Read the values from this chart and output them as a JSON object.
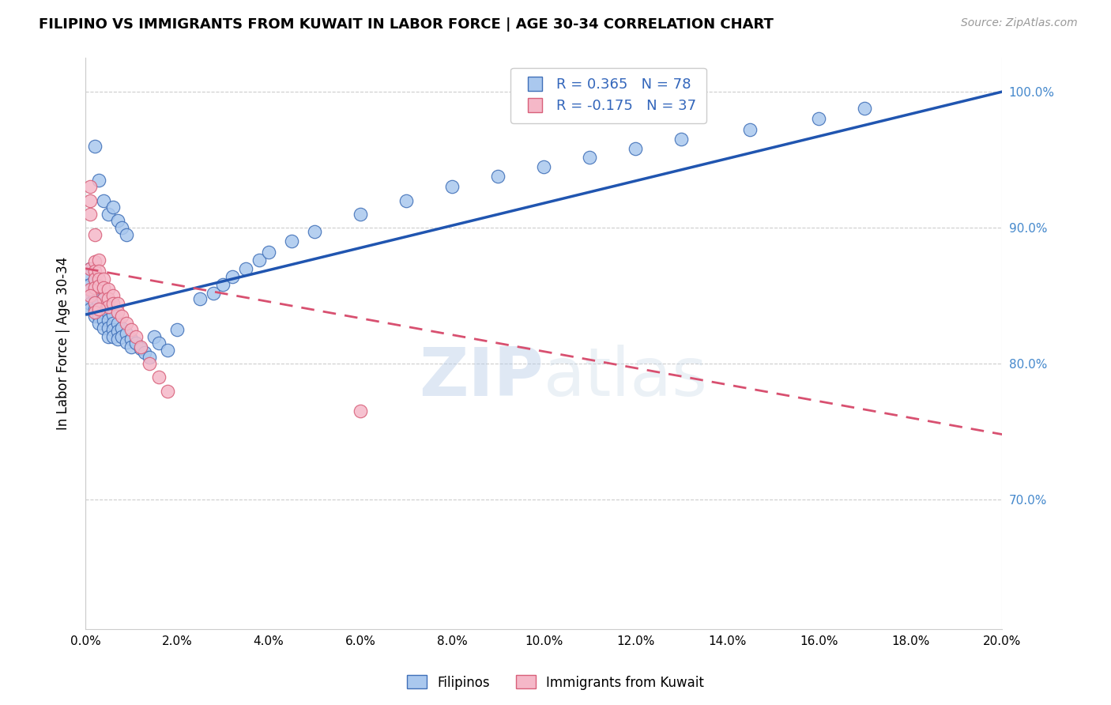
{
  "title": "FILIPINO VS IMMIGRANTS FROM KUWAIT IN LABOR FORCE | AGE 30-34 CORRELATION CHART",
  "source": "Source: ZipAtlas.com",
  "ylabel": "In Labor Force | Age 30-34",
  "xlim": [
    0.0,
    0.2
  ],
  "ylim": [
    0.605,
    1.025
  ],
  "yticks": [
    0.7,
    0.8,
    0.9,
    1.0
  ],
  "xticks": [
    0.0,
    0.02,
    0.04,
    0.06,
    0.08,
    0.1,
    0.12,
    0.14,
    0.16,
    0.18,
    0.2
  ],
  "blue_R": 0.365,
  "blue_N": 78,
  "pink_R": -0.175,
  "pink_N": 37,
  "blue_color": "#aac8ee",
  "pink_color": "#f5b8c8",
  "blue_edge_color": "#4070b8",
  "pink_edge_color": "#d8607a",
  "blue_line_color": "#2055b0",
  "pink_line_color": "#d85070",
  "legend_labels": [
    "Filipinos",
    "Immigrants from Kuwait"
  ],
  "blue_scatter_x": [
    0.001,
    0.001,
    0.001,
    0.001,
    0.001,
    0.001,
    0.001,
    0.002,
    0.002,
    0.002,
    0.002,
    0.002,
    0.002,
    0.003,
    0.003,
    0.003,
    0.003,
    0.003,
    0.003,
    0.004,
    0.004,
    0.004,
    0.004,
    0.004,
    0.005,
    0.005,
    0.005,
    0.005,
    0.005,
    0.006,
    0.006,
    0.006,
    0.006,
    0.007,
    0.007,
    0.007,
    0.008,
    0.008,
    0.009,
    0.009,
    0.01,
    0.01,
    0.011,
    0.012,
    0.013,
    0.014,
    0.015,
    0.016,
    0.018,
    0.02,
    0.025,
    0.028,
    0.03,
    0.032,
    0.035,
    0.038,
    0.04,
    0.045,
    0.05,
    0.06,
    0.07,
    0.08,
    0.09,
    0.1,
    0.11,
    0.12,
    0.13,
    0.145,
    0.16,
    0.17,
    0.004,
    0.002,
    0.003,
    0.005,
    0.006,
    0.007,
    0.008,
    0.009
  ],
  "blue_scatter_y": [
    0.87,
    0.865,
    0.858,
    0.854,
    0.848,
    0.844,
    0.84,
    0.862,
    0.855,
    0.85,
    0.845,
    0.84,
    0.835,
    0.855,
    0.85,
    0.845,
    0.84,
    0.835,
    0.83,
    0.848,
    0.842,
    0.838,
    0.832,
    0.826,
    0.842,
    0.837,
    0.832,
    0.826,
    0.82,
    0.836,
    0.83,
    0.825,
    0.82,
    0.83,
    0.824,
    0.818,
    0.826,
    0.82,
    0.822,
    0.816,
    0.818,
    0.812,
    0.815,
    0.811,
    0.808,
    0.805,
    0.82,
    0.815,
    0.81,
    0.825,
    0.848,
    0.852,
    0.858,
    0.864,
    0.87,
    0.876,
    0.882,
    0.89,
    0.897,
    0.91,
    0.92,
    0.93,
    0.938,
    0.945,
    0.952,
    0.958,
    0.965,
    0.972,
    0.98,
    0.988,
    0.92,
    0.96,
    0.935,
    0.91,
    0.915,
    0.905,
    0.9,
    0.895
  ],
  "pink_scatter_x": [
    0.001,
    0.001,
    0.001,
    0.001,
    0.001,
    0.002,
    0.002,
    0.002,
    0.002,
    0.002,
    0.003,
    0.003,
    0.003,
    0.003,
    0.004,
    0.004,
    0.004,
    0.005,
    0.005,
    0.005,
    0.006,
    0.006,
    0.007,
    0.007,
    0.008,
    0.009,
    0.01,
    0.011,
    0.012,
    0.014,
    0.016,
    0.018,
    0.001,
    0.002,
    0.002,
    0.003,
    0.06
  ],
  "pink_scatter_y": [
    0.93,
    0.92,
    0.91,
    0.87,
    0.855,
    0.895,
    0.875,
    0.868,
    0.862,
    0.856,
    0.876,
    0.868,
    0.862,
    0.857,
    0.862,
    0.856,
    0.848,
    0.855,
    0.848,
    0.842,
    0.85,
    0.844,
    0.844,
    0.838,
    0.835,
    0.83,
    0.825,
    0.82,
    0.812,
    0.8,
    0.79,
    0.78,
    0.85,
    0.845,
    0.838,
    0.84,
    0.765
  ],
  "blue_trend_x": [
    0.0,
    0.2
  ],
  "blue_trend_y": [
    0.836,
    1.0
  ],
  "pink_trend_x": [
    0.0,
    0.2
  ],
  "pink_trend_y": [
    0.87,
    0.748
  ]
}
